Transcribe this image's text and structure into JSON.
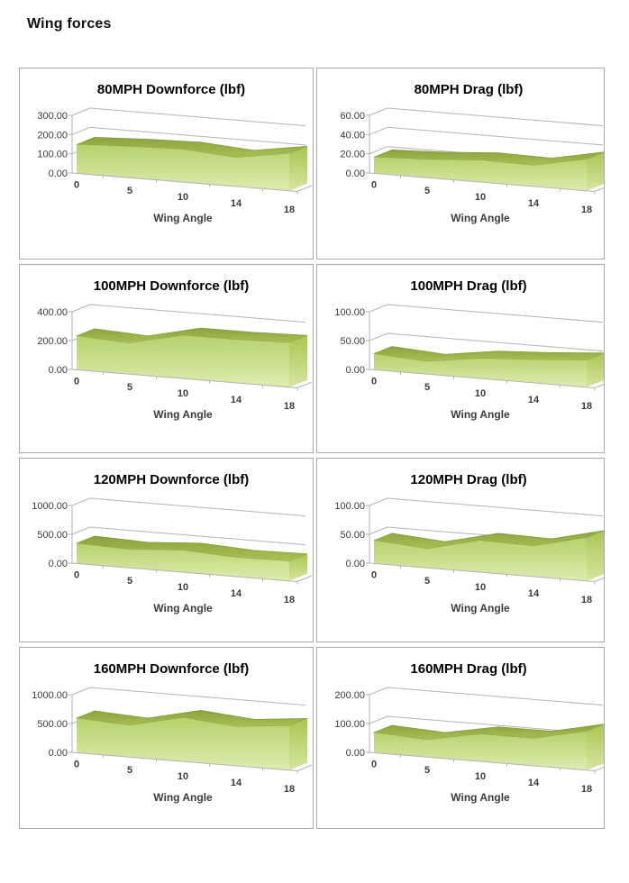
{
  "page_title": "Wing forces",
  "x_axis_label": "Wing Angle",
  "chart_data": [
    {
      "type": "area",
      "title": "80MPH Downforce (lbf)",
      "xlabel": "Wing Angle",
      "categories": [
        "0",
        "5",
        "10",
        "14",
        "18"
      ],
      "values": [
        150,
        163,
        170,
        150,
        195
      ],
      "y_ticks": [
        "0.00",
        "100.00",
        "200.00",
        "300.00"
      ],
      "ylim": [
        0,
        300
      ],
      "legend": "none",
      "grid": "on"
    },
    {
      "type": "area",
      "title": "80MPH Drag (lbf)",
      "xlabel": "Wing Angle",
      "categories": [
        "0",
        "5",
        "10",
        "14",
        "18"
      ],
      "values": [
        17,
        19,
        23,
        22,
        33
      ],
      "y_ticks": [
        "0.00",
        "20.00",
        "40.00",
        "60.00"
      ],
      "ylim": [
        0,
        60
      ],
      "legend": "none",
      "grid": "on"
    },
    {
      "type": "area",
      "title": "100MPH Downforce (lbf)",
      "xlabel": "Wing Angle",
      "categories": [
        "0",
        "5",
        "10",
        "14",
        "18"
      ],
      "values": [
        235,
        215,
        300,
        300,
        310
      ],
      "y_ticks": [
        "0.00",
        "200.00",
        "400.00"
      ],
      "ylim": [
        0,
        400
      ],
      "legend": "none",
      "grid": "on"
    },
    {
      "type": "area",
      "title": "100MPH Drag (lbf)",
      "xlabel": "Wing Angle",
      "categories": [
        "0",
        "5",
        "10",
        "14",
        "18"
      ],
      "values": [
        28,
        22,
        35,
        40,
        47
      ],
      "y_ticks": [
        "0.00",
        "50.00",
        "100.00"
      ],
      "ylim": [
        0,
        100
      ],
      "legend": "none",
      "grid": "on"
    },
    {
      "type": "area",
      "title": "120MPH Downforce (lbf)",
      "xlabel": "Wing Angle",
      "categories": [
        "0",
        "5",
        "10",
        "14",
        "18"
      ],
      "values": [
        350,
        320,
        380,
        330,
        345
      ],
      "y_ticks": [
        "0.00",
        "500.00",
        "1000.00"
      ],
      "ylim": [
        0,
        1000
      ],
      "legend": "none",
      "grid": "on"
    },
    {
      "type": "area",
      "title": "120MPH Drag (lbf)",
      "xlabel": "Wing Angle",
      "categories": [
        "0",
        "5",
        "10",
        "14",
        "18"
      ],
      "values": [
        40,
        33,
        55,
        53,
        75
      ],
      "y_ticks": [
        "0.00",
        "50.00",
        "100.00"
      ],
      "ylim": [
        0,
        100
      ],
      "legend": "none",
      "grid": "on"
    },
    {
      "type": "area",
      "title": "160MPH Downforce (lbf)",
      "xlabel": "Wing Angle",
      "categories": [
        "0",
        "5",
        "10",
        "14",
        "18"
      ],
      "values": [
        600,
        550,
        760,
        680,
        770
      ],
      "y_ticks": [
        "0.00",
        "500.00",
        "1000.00"
      ],
      "ylim": [
        0,
        1000
      ],
      "legend": "none",
      "grid": "on"
    },
    {
      "type": "area",
      "title": "160MPH Drag (lbf)",
      "xlabel": "Wing Angle",
      "categories": [
        "0",
        "5",
        "10",
        "14",
        "18"
      ],
      "values": [
        70,
        60,
        95,
        95,
        135
      ],
      "y_ticks": [
        "0.00",
        "100.00",
        "200.00"
      ],
      "ylim": [
        0,
        200
      ],
      "legend": "none",
      "grid": "on"
    }
  ],
  "colors": {
    "area_fill_top": "#b5d26c",
    "area_fill_bottom": "#ddedb0",
    "ridge_top": "#8ba33f",
    "ridge_bottom": "#a9c054",
    "ridge_stroke": "#7f9839",
    "cap_top": "#aac554",
    "cap_bottom": "#d5e69e",
    "grid_line": "#b3b3b3",
    "panel_border": "#a8a8a8",
    "axis_text": "#3b3b3b",
    "title_text": "#000000"
  }
}
